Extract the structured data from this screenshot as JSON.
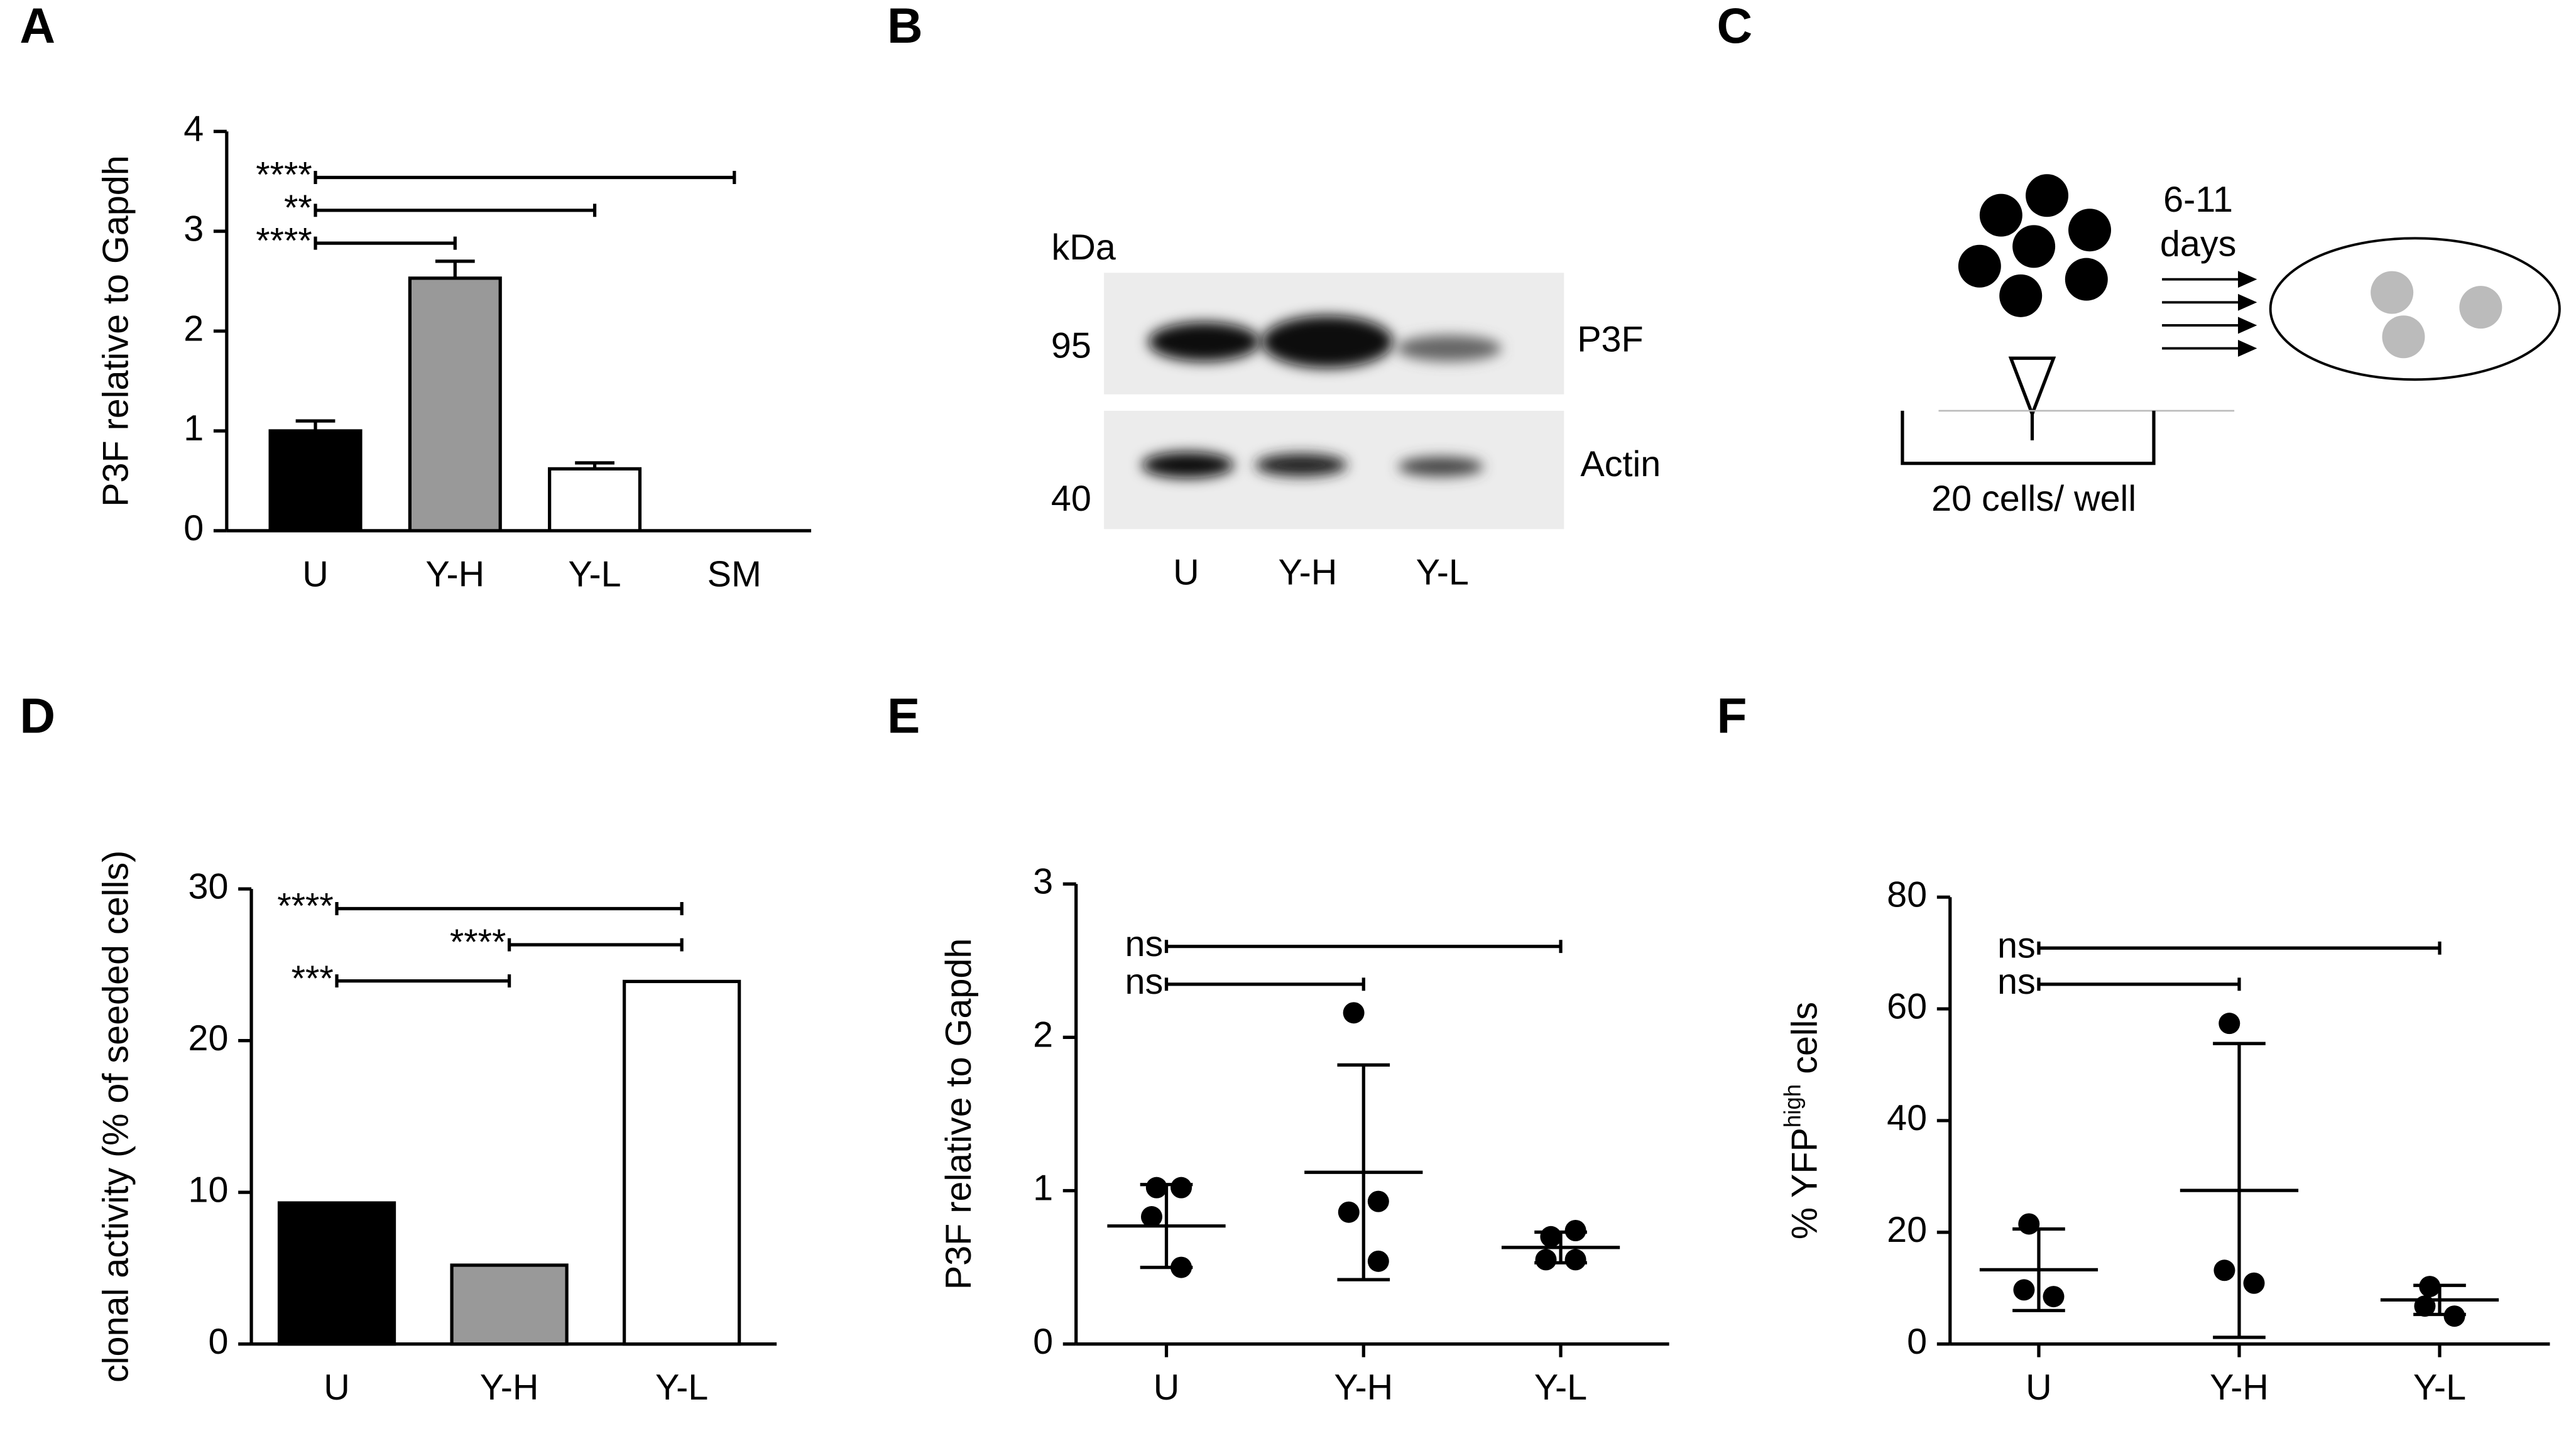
{
  "chart_data": [
    {
      "panel": "A",
      "type": "bar",
      "ylabel": "P3F relative to Gapdh",
      "categories": [
        "U",
        "Y-H",
        "Y-L",
        "SM"
      ],
      "values": [
        1.0,
        2.53,
        0.62,
        0
      ],
      "errors": [
        0.1,
        0.17,
        0.06,
        null
      ],
      "colors": [
        "#000000",
        "#999999",
        "#ffffff",
        "#ffffff"
      ],
      "ylim": [
        0,
        4
      ],
      "yticks": [
        0,
        1,
        2,
        3,
        4
      ],
      "comparisons": [
        {
          "label": "****",
          "between": [
            "U",
            "SM"
          ]
        },
        {
          "label": "**",
          "between": [
            "U",
            "Y-L"
          ]
        },
        {
          "label": "****",
          "between": [
            "U",
            "Y-H"
          ]
        }
      ]
    },
    {
      "panel": "D",
      "type": "bar",
      "ylabel": "clonal activity (% of seeded cells)",
      "categories": [
        "U",
        "Y-H",
        "Y-L"
      ],
      "values": [
        9.3,
        5.2,
        23.9
      ],
      "colors": [
        "#000000",
        "#999999",
        "#ffffff"
      ],
      "ylim": [
        0,
        30
      ],
      "yticks": [
        0,
        10,
        20,
        30
      ],
      "comparisons": [
        {
          "label": "****",
          "between": [
            "U",
            "Y-L"
          ]
        },
        {
          "label": "****",
          "between": [
            "Y-H",
            "Y-L"
          ]
        },
        {
          "label": "***",
          "between": [
            "U",
            "Y-H"
          ]
        }
      ]
    },
    {
      "panel": "E",
      "type": "dot",
      "ylabel": "P3F relative to Gapdh",
      "categories": [
        "U",
        "Y-H",
        "Y-L"
      ],
      "points": [
        [
          1.02,
          1.02,
          0.83,
          0.5
        ],
        [
          2.16,
          0.93,
          0.86,
          0.54
        ],
        [
          0.7,
          0.74,
          0.55,
          0.55
        ]
      ],
      "means": [
        0.77,
        1.12,
        0.63
      ],
      "errors": [
        0.27,
        0.7,
        0.1
      ],
      "ylim": [
        0,
        3
      ],
      "yticks": [
        0,
        1,
        2,
        3
      ],
      "comparisons": [
        {
          "label": "ns",
          "between": [
            "U",
            "Y-L"
          ]
        },
        {
          "label": "ns",
          "between": [
            "U",
            "Y-H"
          ]
        }
      ]
    },
    {
      "panel": "F",
      "type": "dot",
      "ylabel": [
        "% YFP",
        "high",
        " cells"
      ],
      "categories": [
        "U",
        "Y-H",
        "Y-L"
      ],
      "points": [
        [
          21.5,
          8.5,
          9.7
        ],
        [
          57.4,
          10.9,
          13.2
        ],
        [
          10.3,
          5,
          6.8
        ]
      ],
      "means": [
        13.3,
        27.5,
        7.9
      ],
      "errors": [
        7.3,
        26.3,
        2.6
      ],
      "ylim": [
        0,
        80
      ],
      "yticks": [
        0,
        20,
        40,
        60,
        80
      ],
      "comparisons": [
        {
          "label": "ns",
          "between": [
            "U",
            "Y-L"
          ]
        },
        {
          "label": "ns",
          "between": [
            "U",
            "Y-H"
          ]
        }
      ]
    }
  ],
  "blot": {
    "panel": "B",
    "unit": "kDa",
    "markers": [
      "95",
      "40"
    ],
    "bands": [
      "P3F",
      "Actin"
    ],
    "lanes": [
      "U",
      "Y-H",
      "Y-L"
    ]
  },
  "schematic": {
    "panel": "C",
    "duration": [
      "6-11",
      "days"
    ],
    "seeding": "20 cells/ well"
  }
}
